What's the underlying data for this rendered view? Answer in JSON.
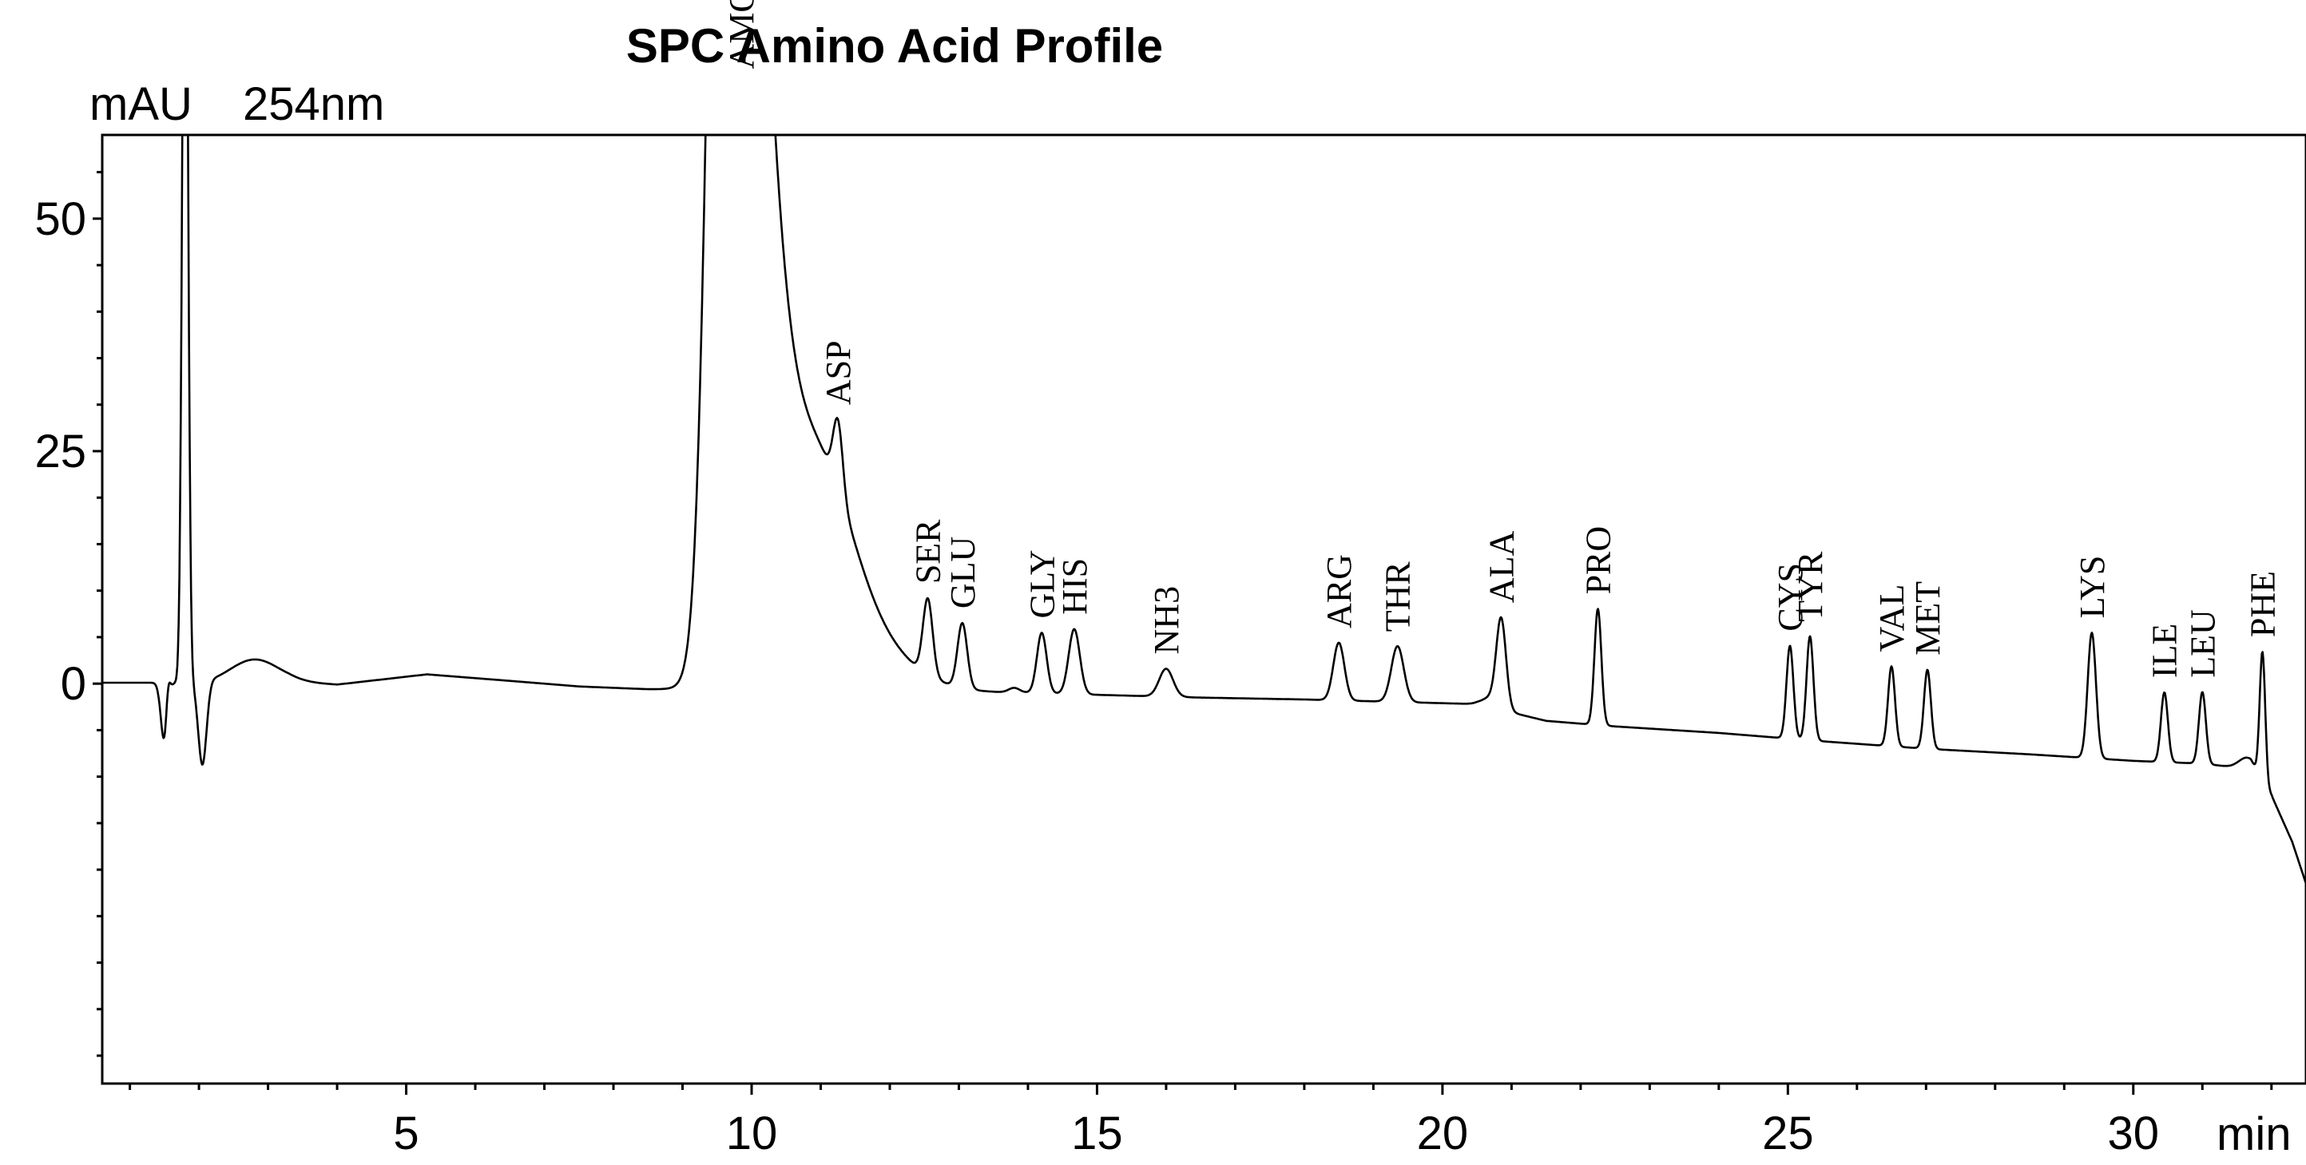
{
  "chart_data": {
    "type": "line",
    "title": "SPC Amino Acid Profile",
    "ylabel": "mAU",
    "detector": "254nm",
    "xlabel": "min",
    "xlim": [
      0.6,
      32.5
    ],
    "ylim": [
      -43,
      59
    ],
    "x_ticks": [
      5,
      10,
      15,
      20,
      25,
      30
    ],
    "y_ticks": [
      0,
      25,
      50
    ],
    "grid": false,
    "series": [
      {
        "baseline": [
          [
            0.6,
            0.1
          ],
          [
            1.5,
            0.1
          ],
          [
            2.3,
            0.0
          ],
          [
            3.3,
            0.2
          ],
          [
            4.0,
            -0.1
          ],
          [
            5.3,
            1.0
          ],
          [
            6.5,
            0.3
          ],
          [
            7.5,
            -0.3
          ],
          [
            8.5,
            -0.6
          ],
          [
            9.3,
            -0.7
          ],
          [
            9.9,
            -0.4
          ],
          [
            11.0,
            -0.5
          ],
          [
            12.0,
            -0.8
          ],
          [
            13.0,
            -1.0
          ],
          [
            14.0,
            -1.0
          ],
          [
            15.0,
            -1.2
          ],
          [
            16.5,
            -1.5
          ],
          [
            18.0,
            -1.7
          ],
          [
            19.5,
            -2.0
          ],
          [
            20.5,
            -2.2
          ],
          [
            21.5,
            -4.0
          ],
          [
            22.5,
            -4.6
          ],
          [
            24.0,
            -5.3
          ],
          [
            25.5,
            -6.2
          ],
          [
            27.0,
            -7.0
          ],
          [
            28.5,
            -7.6
          ],
          [
            30.0,
            -8.3
          ],
          [
            31.0,
            -8.6
          ],
          [
            31.7,
            -9.2
          ],
          [
            32.0,
            -12.0
          ],
          [
            32.3,
            -17.0
          ],
          [
            32.5,
            -21.5
          ]
        ],
        "bumps": [
          [
            1.5,
            -6.5,
            0.05
          ],
          [
            1.55,
            3.0,
            0.03
          ],
          [
            1.8,
            100.0,
            0.04
          ],
          [
            2.05,
            -9.0,
            0.06
          ],
          [
            2.8,
            2.5,
            0.35
          ],
          [
            9.6,
            140.0,
            0.2
          ],
          [
            10.3,
            25.0,
            0.45
          ],
          [
            11.1,
            6.0,
            0.4
          ],
          [
            11.25,
            7.5,
            0.07
          ],
          [
            12.55,
            8.2,
            0.07
          ],
          [
            13.05,
            7.0,
            0.07
          ],
          [
            13.8,
            0.5,
            0.08
          ],
          [
            14.2,
            6.5,
            0.07
          ],
          [
            14.67,
            7.0,
            0.08
          ],
          [
            16.0,
            3.0,
            0.1
          ],
          [
            18.5,
            6.2,
            0.08
          ],
          [
            19.35,
            6.0,
            0.09
          ],
          [
            20.7,
            1.0,
            0.12
          ],
          [
            20.85,
            9.5,
            0.07
          ],
          [
            22.25,
            12.5,
            0.05
          ],
          [
            25.03,
            10.0,
            0.05
          ],
          [
            25.32,
            11.2,
            0.05
          ],
          [
            26.5,
            8.6,
            0.05
          ],
          [
            27.02,
            8.5,
            0.05
          ],
          [
            29.4,
            13.5,
            0.06
          ],
          [
            30.45,
            7.5,
            0.05
          ],
          [
            31.0,
            7.7,
            0.05
          ],
          [
            31.65,
            1.2,
            0.12
          ],
          [
            31.87,
            14.0,
            0.04
          ]
        ]
      }
    ],
    "peaks": [
      {
        "label": "AMQ",
        "x": 9.85
      },
      {
        "label": "ASP",
        "x": 11.25
      },
      {
        "label": "SER",
        "x": 12.55
      },
      {
        "label": "GLU",
        "x": 13.05
      },
      {
        "label": "GLY",
        "x": 14.2
      },
      {
        "label": "HIS",
        "x": 14.67
      },
      {
        "label": "NH3",
        "x": 16.0
      },
      {
        "label": "ARG",
        "x": 18.5
      },
      {
        "label": "THR",
        "x": 19.35
      },
      {
        "label": "ALA",
        "x": 20.85
      },
      {
        "label": "PRO",
        "x": 22.25
      },
      {
        "label": "CYS",
        "x": 25.03
      },
      {
        "label": "TYR",
        "x": 25.32
      },
      {
        "label": "VAL",
        "x": 26.5
      },
      {
        "label": "MET",
        "x": 27.02
      },
      {
        "label": "LYS",
        "x": 29.4
      },
      {
        "label": "ILE",
        "x": 30.45
      },
      {
        "label": "LEU",
        "x": 31.0
      },
      {
        "label": "PHE",
        "x": 31.87
      }
    ]
  }
}
